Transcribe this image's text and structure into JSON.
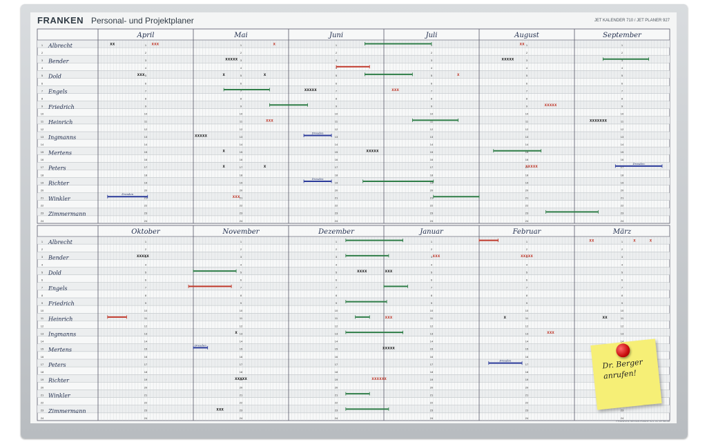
{
  "header": {
    "brand": "FRANKEN",
    "title": "Personal- und Projektplaner",
    "product_info": "JET KALENDER 710 / JET PLANER 927",
    "footer_info": "FRANKEN Service-Hotline 021 51 59 98-66"
  },
  "people": [
    "Albrecht",
    "Bender",
    "Dold",
    "Engels",
    "Friedrich",
    "Heinrich",
    "Ingmanns",
    "Mertens",
    "Peters",
    "Richter",
    "Winkler",
    "Zimmermann"
  ],
  "day_numbers": [
    "1",
    "2",
    "3",
    "4",
    "5",
    "6",
    "7",
    "8",
    "9",
    "10",
    "11",
    "12",
    "13",
    "14",
    "15",
    "16",
    "17",
    "18",
    "19",
    "20",
    "21",
    "22",
    "23",
    "24"
  ],
  "panels": [
    {
      "months": [
        "April",
        "Mai",
        "Juni",
        "Juli",
        "August",
        "September"
      ],
      "marks": [
        {
          "row": 1,
          "month": 0,
          "pos": 0.15,
          "text": "xx",
          "color": "#1a1a1a"
        },
        {
          "row": 1,
          "month": 0,
          "pos": 0.6,
          "text": "xxx",
          "color": "#c0392b"
        },
        {
          "row": 1,
          "month": 1,
          "pos": 0.85,
          "text": "x",
          "color": "#c0392b"
        },
        {
          "row": 1,
          "month": 3,
          "start": -0.2,
          "end": 0.5,
          "color": "#2e7d47"
        },
        {
          "row": 1,
          "month": 4,
          "pos": 0.45,
          "text": "xx",
          "color": "#c0392b"
        },
        {
          "row": 3,
          "month": 1,
          "pos": 0.4,
          "text": "xxxxx",
          "color": "#1a1a1a"
        },
        {
          "row": 3,
          "month": 4,
          "pos": 0.3,
          "text": "xxxxx",
          "color": "#1a1a1a"
        },
        {
          "row": 3,
          "month": 5,
          "start": 0.3,
          "end": 0.78,
          "color": "#2e7d47"
        },
        {
          "row": 4,
          "month": 2,
          "start": 0.5,
          "end": 0.85,
          "color": "#c0392b"
        },
        {
          "row": 5,
          "month": 0,
          "pos": 0.45,
          "text": "xxx",
          "color": "#1a1a1a"
        },
        {
          "row": 5,
          "month": 1,
          "pos": 0.32,
          "text": "x",
          "color": "#1a1a1a"
        },
        {
          "row": 5,
          "month": 1,
          "pos": 0.75,
          "text": "x",
          "color": "#1a1a1a"
        },
        {
          "row": 5,
          "month": 2,
          "start": 0.8,
          "end": 1.3,
          "color": "#2e7d47"
        },
        {
          "row": 5,
          "month": 3,
          "pos": 0.78,
          "text": "x",
          "color": "#c0392b"
        },
        {
          "row": 7,
          "month": 1,
          "start": 0.32,
          "end": 0.8,
          "color": "#2e7d47"
        },
        {
          "row": 7,
          "month": 2,
          "pos": 0.23,
          "text": "xxxxx",
          "color": "#1a1a1a"
        },
        {
          "row": 7,
          "month": 3,
          "pos": 0.12,
          "text": "xxx",
          "color": "#c0392b"
        },
        {
          "row": 9,
          "month": 1,
          "start": 0.8,
          "end": 1.2,
          "color": "#2e7d47"
        },
        {
          "row": 9,
          "month": 4,
          "pos": 0.75,
          "text": "xxxxx",
          "color": "#c0392b"
        },
        {
          "row": 11,
          "month": 1,
          "pos": 0.8,
          "text": "xxx",
          "color": "#c0392b"
        },
        {
          "row": 11,
          "month": 3,
          "start": 0.3,
          "end": 0.78,
          "color": "#2e7d47"
        },
        {
          "row": 11,
          "month": 5,
          "pos": 0.25,
          "text": "xxxxxxx",
          "color": "#1a1a1a"
        },
        {
          "row": 13,
          "month": 1,
          "pos": 0.08,
          "text": "xxxxx",
          "color": "#1a1a1a"
        },
        {
          "row": 13,
          "month": 2,
          "start": 0.16,
          "end": 0.45,
          "color": "#2a3a9a",
          "label": "Dresden"
        },
        {
          "row": 15,
          "month": 1,
          "pos": 0.32,
          "text": "x",
          "color": "#1a1a1a"
        },
        {
          "row": 15,
          "month": 2,
          "pos": 0.88,
          "text": "xxxxx",
          "color": "#1a1a1a"
        },
        {
          "row": 15,
          "month": 4,
          "start": 0.15,
          "end": 0.65,
          "color": "#2e7d47"
        },
        {
          "row": 17,
          "month": 1,
          "pos": 0.32,
          "text": "x",
          "color": "#1a1a1a"
        },
        {
          "row": 17,
          "month": 1,
          "pos": 0.75,
          "text": "x",
          "color": "#1a1a1a"
        },
        {
          "row": 17,
          "month": 4,
          "pos": 0.55,
          "text": "xxxxx",
          "color": "#c0392b"
        },
        {
          "row": 17,
          "month": 5,
          "start": 0.43,
          "end": 0.92,
          "color": "#2a3a9a",
          "label": "Dresden"
        },
        {
          "row": 19,
          "month": 2,
          "start": 0.16,
          "end": 0.45,
          "color": "#2a3a9a",
          "label": "Dresden"
        },
        {
          "row": 19,
          "month": 2,
          "start": 0.78,
          "end": 1.52,
          "color": "#2e7d47"
        },
        {
          "row": 21,
          "month": 0,
          "start": 0.1,
          "end": 0.52,
          "color": "#2a3a9a",
          "label": "Dresden"
        },
        {
          "row": 21,
          "month": 3,
          "start": 0.52,
          "end": 1.0,
          "color": "#2e7d47"
        },
        {
          "row": 21,
          "month": 1,
          "pos": 0.45,
          "text": "xxx",
          "color": "#c0392b"
        },
        {
          "row": 23,
          "month": 4,
          "start": 0.7,
          "end": 1.25,
          "color": "#2e7d47"
        }
      ]
    },
    {
      "months": [
        "Oktober",
        "November",
        "Dezember",
        "Januar",
        "Februar",
        "März"
      ],
      "marks": [
        {
          "row": 1,
          "month": 2,
          "start": 0.6,
          "end": 1.2,
          "color": "#2e7d47"
        },
        {
          "row": 1,
          "month": 4,
          "start": 0.0,
          "end": 0.2,
          "color": "#c0392b"
        },
        {
          "row": 1,
          "month": 5,
          "pos": 0.18,
          "text": "xx",
          "color": "#c0392b"
        },
        {
          "row": 1,
          "month": 5,
          "pos": 0.63,
          "text": "x",
          "color": "#c0392b"
        },
        {
          "row": 1,
          "month": 5,
          "pos": 0.8,
          "text": "x",
          "color": "#c0392b"
        },
        {
          "row": 3,
          "month": 0,
          "pos": 0.47,
          "text": "xxxxx",
          "color": "#1a1a1a"
        },
        {
          "row": 3,
          "month": 2,
          "start": 0.6,
          "end": 1.05,
          "color": "#2e7d47"
        },
        {
          "row": 3,
          "month": 3,
          "pos": 0.55,
          "text": "xxx",
          "color": "#c0392b"
        },
        {
          "row": 3,
          "month": 4,
          "pos": 0.5,
          "text": "xxxxx",
          "color": "#c0392b"
        },
        {
          "row": 5,
          "month": 1,
          "start": 0.0,
          "end": 0.45,
          "color": "#2e7d47"
        },
        {
          "row": 5,
          "month": 2,
          "pos": 0.77,
          "text": "xxxx",
          "color": "#1a1a1a"
        },
        {
          "row": 5,
          "month": 3,
          "pos": 0.05,
          "text": "xxx",
          "color": "#1a1a1a"
        },
        {
          "row": 7,
          "month": 0,
          "start": 0.95,
          "end": 1.4,
          "color": "#c0392b"
        },
        {
          "row": 7,
          "month": 3,
          "start": 0.0,
          "end": 0.25,
          "color": "#2e7d47"
        },
        {
          "row": 9,
          "month": 2,
          "start": 0.6,
          "end": 1.03,
          "color": "#2e7d47"
        },
        {
          "row": 11,
          "month": 0,
          "start": 0.1,
          "end": 0.3,
          "color": "#c0392b"
        },
        {
          "row": 11,
          "month": 2,
          "start": 0.7,
          "end": 0.85,
          "color": "#2e7d47"
        },
        {
          "row": 11,
          "month": 3,
          "pos": 0.05,
          "text": "xxx",
          "color": "#c0392b"
        },
        {
          "row": 11,
          "month": 4,
          "pos": 0.27,
          "text": "x",
          "color": "#1a1a1a"
        },
        {
          "row": 11,
          "month": 5,
          "pos": 0.32,
          "text": "xx",
          "color": "#1a1a1a"
        },
        {
          "row": 13,
          "month": 1,
          "pos": 0.45,
          "text": "x",
          "color": "#1a1a1a"
        },
        {
          "row": 13,
          "month": 2,
          "start": 0.6,
          "end": 1.2,
          "color": "#2e7d47"
        },
        {
          "row": 13,
          "month": 4,
          "pos": 0.75,
          "text": "xxx",
          "color": "#c0392b"
        },
        {
          "row": 15,
          "month": 1,
          "start": 0.0,
          "end": 0.15,
          "color": "#2a3a9a",
          "label": "Dresden"
        },
        {
          "row": 15,
          "month": 3,
          "pos": 0.05,
          "text": "xxxxx",
          "color": "#1a1a1a"
        },
        {
          "row": 17,
          "month": 4,
          "start": 0.1,
          "end": 0.45,
          "color": "#2a3a9a",
          "label": "Dresden"
        },
        {
          "row": 19,
          "month": 1,
          "pos": 0.5,
          "text": "xxxxx",
          "color": "#1a1a1a"
        },
        {
          "row": 19,
          "month": 2,
          "pos": 0.95,
          "text": "xxxxxx",
          "color": "#c0392b"
        },
        {
          "row": 21,
          "month": 2,
          "start": 0.6,
          "end": 0.85,
          "color": "#2e7d47"
        },
        {
          "row": 23,
          "month": 1,
          "pos": 0.28,
          "text": "xxx",
          "color": "#1a1a1a"
        },
        {
          "row": 23,
          "month": 2,
          "start": 0.6,
          "end": 1.05,
          "color": "#2e7d47"
        }
      ]
    }
  ],
  "sticky_note": {
    "text": "Dr. Berger\nanrufen!"
  },
  "colors": {
    "green": "#2e7d47",
    "red": "#c0392b",
    "blue": "#2a3a9a",
    "black": "#1a1a1a"
  }
}
